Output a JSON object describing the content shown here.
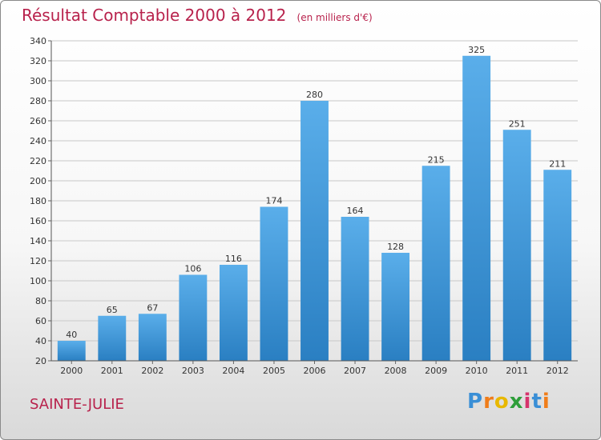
{
  "title": "Résultat Comptable 2000 à 2012",
  "unit_note": "(en milliers d'€)",
  "city": "SAINTE-JULIE",
  "logo": {
    "letters": [
      "P",
      "r",
      "o",
      "x",
      "i",
      "t",
      "i"
    ],
    "colors": [
      "#3a8fd6",
      "#f07d1a",
      "#e8b800",
      "#2e9e3a",
      "#d6336c",
      "#3a8fd6",
      "#f07d1a"
    ]
  },
  "colors": {
    "bar_light": "#5aaeea",
    "bar_dark": "#2a7fc2",
    "grid": "#c8c8c8",
    "title": "#b8224c"
  },
  "chart_data": {
    "type": "bar",
    "title": "Résultat Comptable 2000 à 2012",
    "xlabel": "",
    "ylabel": "",
    "categories": [
      "2000",
      "2001",
      "2002",
      "2003",
      "2004",
      "2005",
      "2006",
      "2007",
      "2008",
      "2009",
      "2010",
      "2011",
      "2012"
    ],
    "values": [
      40,
      65,
      67,
      106,
      116,
      174,
      280,
      164,
      128,
      215,
      325,
      251,
      211
    ],
    "ylim": [
      20,
      340
    ],
    "yticks": [
      20,
      40,
      60,
      80,
      100,
      120,
      140,
      160,
      180,
      200,
      220,
      240,
      260,
      280,
      300,
      320,
      340
    ],
    "grid": true,
    "legend": "none"
  }
}
